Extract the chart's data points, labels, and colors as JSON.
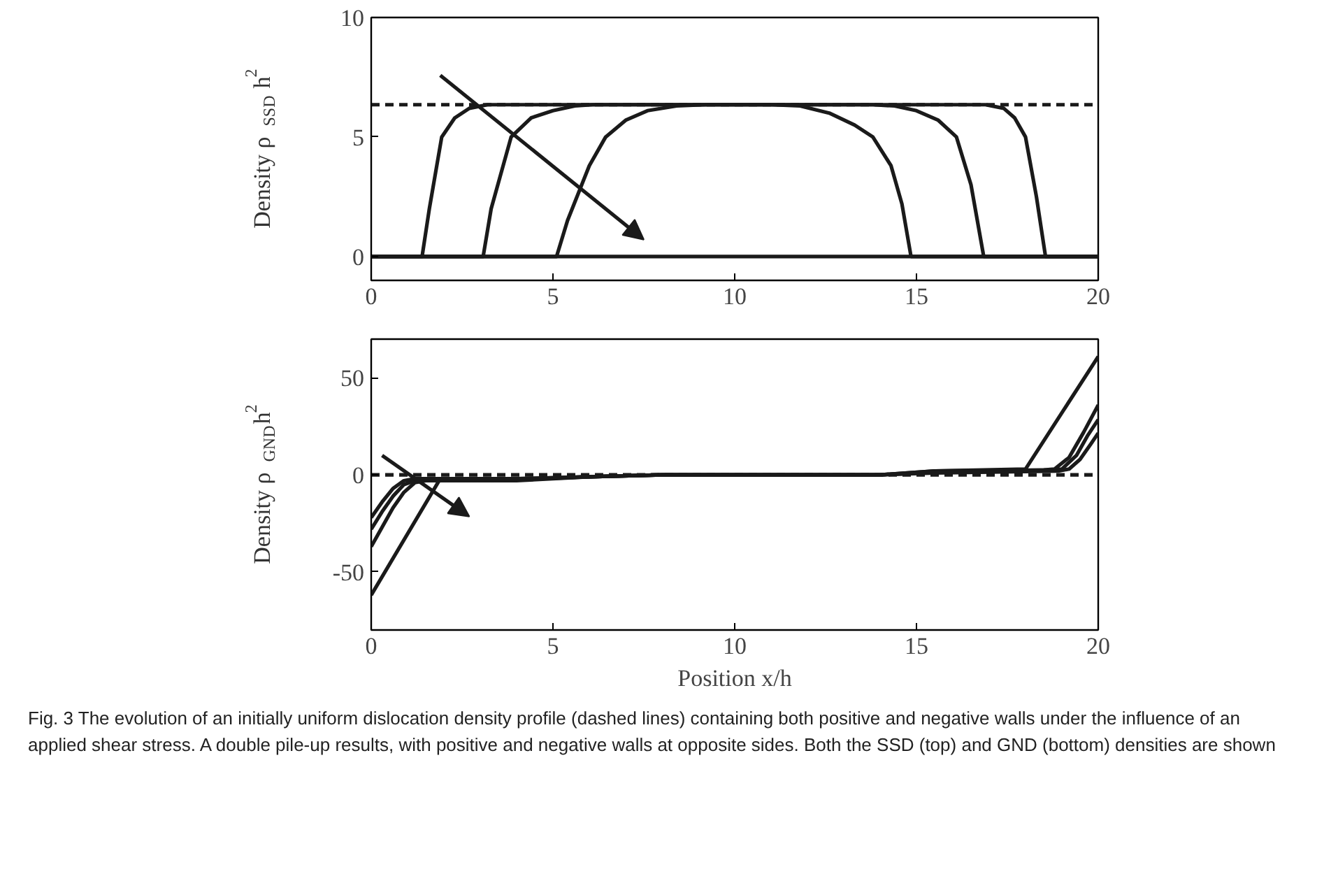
{
  "chart_data": [
    {
      "type": "line",
      "ylabel": "Density ρ$_{SSD}$h$^{2}$",
      "xlim": [
        0,
        20
      ],
      "ylim": [
        -1,
        10
      ],
      "xticks": [
        0,
        5,
        10,
        15,
        20
      ],
      "yticks": [
        0,
        5,
        10
      ],
      "grid": false,
      "series": [
        {
          "color": "#1a1a1a",
          "line_style": "dashed",
          "x": [
            0,
            20
          ],
          "values": [
            6.35,
            6.35
          ]
        },
        {
          "color": "#1a1a1a",
          "line_style": "solid",
          "x": [
            0,
            1.4,
            1.6,
            1.94,
            2.3,
            2.7,
            3.2,
            3.5,
            10,
            16.9,
            17.4,
            17.7,
            18.0,
            18.3,
            18.55,
            20
          ],
          "values": [
            0,
            0,
            2.0,
            5.0,
            5.8,
            6.2,
            6.35,
            6.35,
            6.35,
            6.35,
            6.2,
            5.8,
            5.0,
            2.5,
            0,
            0
          ]
        },
        {
          "color": "#1a1a1a",
          "line_style": "solid",
          "x": [
            0,
            3.08,
            3.3,
            3.85,
            4.4,
            5.0,
            5.6,
            6.1,
            6.6,
            10,
            13.8,
            14.4,
            15.0,
            15.6,
            16.1,
            16.5,
            16.85,
            20
          ],
          "values": [
            0,
            0,
            2.0,
            5.0,
            5.8,
            6.1,
            6.3,
            6.35,
            6.35,
            6.35,
            6.35,
            6.3,
            6.1,
            5.7,
            5.0,
            3.0,
            0,
            0
          ]
        },
        {
          "color": "#1a1a1a",
          "line_style": "solid",
          "x": [
            0,
            5.1,
            5.4,
            6.0,
            6.45,
            7.0,
            7.6,
            8.4,
            9.2,
            10,
            11.0,
            11.8,
            12.6,
            13.3,
            13.8,
            14.3,
            14.6,
            14.85,
            20
          ],
          "values": [
            0,
            0,
            1.5,
            3.8,
            5.0,
            5.7,
            6.1,
            6.3,
            6.35,
            6.35,
            6.35,
            6.3,
            6.0,
            5.5,
            5.0,
            3.8,
            2.2,
            0,
            0
          ]
        },
        {
          "color": "#1a1a1a",
          "line_style": "solid",
          "x": [
            0,
            20
          ],
          "values": [
            0,
            0
          ]
        }
      ]
    },
    {
      "type": "line",
      "xlabel": "Position x/h",
      "ylabel": "Density ρ$_{GND}$h$^{2}$",
      "xlim": [
        0,
        20
      ],
      "ylim": [
        -80,
        70
      ],
      "xticks": [
        0,
        5,
        10,
        15,
        20
      ],
      "yticks": [
        -50,
        0,
        50
      ],
      "grid": false,
      "annotations": [
        "Fig. 3 The evolution of an initially uniform dislocation density profile (dashed lines) containing both positive and negative walls under the influence of an applied shear stress. A double pile-up results, with positive and negative walls at opposite sides. Both the SSD (top) and GND (bottom) densities are shown"
      ],
      "series": [
        {
          "color": "#1a1a1a",
          "line_style": "dashed",
          "x": [
            0,
            20
          ],
          "values": [
            0,
            0
          ]
        },
        {
          "color": "#1a1a1a",
          "line_style": "solid",
          "x": [
            0,
            1.9,
            4,
            6,
            8,
            14,
            15.5,
            18.0,
            20
          ],
          "values": [
            -62,
            -2,
            -2,
            -1,
            0,
            0,
            2,
            3,
            61
          ]
        },
        {
          "color": "#1a1a1a",
          "line_style": "solid",
          "x": [
            0,
            0.3,
            0.6,
            0.9,
            1.2,
            1.5,
            4,
            6,
            8,
            14,
            15.5,
            18.5,
            18.8,
            19.2,
            19.6,
            20
          ],
          "values": [
            -37,
            -27,
            -17,
            -9,
            -4,
            -3,
            -3,
            -1,
            0,
            0,
            2,
            2.5,
            3,
            9,
            22,
            36
          ]
        },
        {
          "color": "#1a1a1a",
          "line_style": "solid",
          "x": [
            0,
            0.3,
            0.6,
            0.9,
            1.2,
            4,
            6,
            8,
            14,
            15.5,
            18.7,
            19.0,
            19.4,
            19.7,
            20
          ],
          "values": [
            -28,
            -19,
            -11,
            -5,
            -3,
            -2.5,
            -1,
            0,
            0,
            1.5,
            2.5,
            3,
            10,
            20,
            28.5
          ]
        },
        {
          "color": "#1a1a1a",
          "line_style": "solid",
          "x": [
            0,
            0.3,
            0.6,
            0.9,
            1.2,
            4,
            6,
            8,
            14,
            15.5,
            18.9,
            19.2,
            19.5,
            19.8,
            20
          ],
          "values": [
            -22,
            -14,
            -7,
            -3,
            -2,
            -2,
            -1,
            0,
            0,
            1,
            2,
            3,
            8,
            16,
            21.5
          ]
        }
      ]
    }
  ]
}
